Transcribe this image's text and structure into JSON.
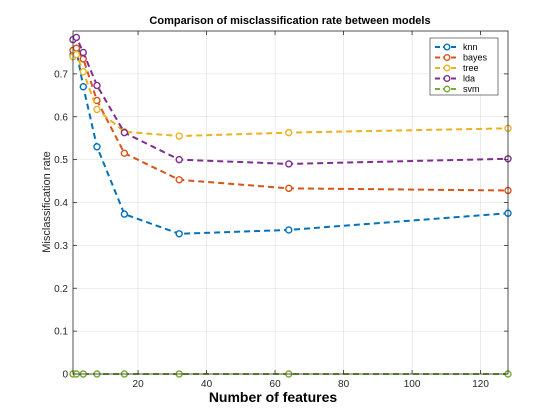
{
  "chart_data": {
    "type": "line",
    "title": "Comparison of misclassification rate between models",
    "xlabel": "Number of features",
    "ylabel": "Misclassification rate",
    "xlim": [
      1,
      128
    ],
    "ylim": [
      0,
      0.8
    ],
    "xticks": [
      20,
      40,
      60,
      80,
      100,
      120
    ],
    "yticks": [
      0,
      0.1,
      0.2,
      0.3,
      0.4,
      0.5,
      0.6,
      0.7
    ],
    "grid": true,
    "legend_position": "top-right",
    "x": [
      1,
      2,
      4,
      8,
      16,
      32,
      64,
      128
    ],
    "series": [
      {
        "name": "knn",
        "color": "#0072BD",
        "values": [
          0.745,
          0.755,
          0.67,
          0.53,
          0.373,
          0.327,
          0.336,
          0.375
        ]
      },
      {
        "name": "bayes",
        "color": "#D95319",
        "values": [
          0.755,
          0.76,
          0.735,
          0.638,
          0.515,
          0.453,
          0.433,
          0.428
        ]
      },
      {
        "name": "tree",
        "color": "#EDB120",
        "values": [
          0.74,
          0.745,
          0.705,
          0.617,
          0.565,
          0.555,
          0.563,
          0.573
        ]
      },
      {
        "name": "lda",
        "color": "#7E2F8E",
        "values": [
          0.78,
          0.785,
          0.75,
          0.673,
          0.563,
          0.5,
          0.49,
          0.502
        ]
      },
      {
        "name": "svm",
        "color": "#77AC30",
        "values": [
          0.0,
          0.0,
          0.0,
          0.0,
          0.0,
          0.0,
          0.0,
          0.0
        ]
      }
    ]
  }
}
